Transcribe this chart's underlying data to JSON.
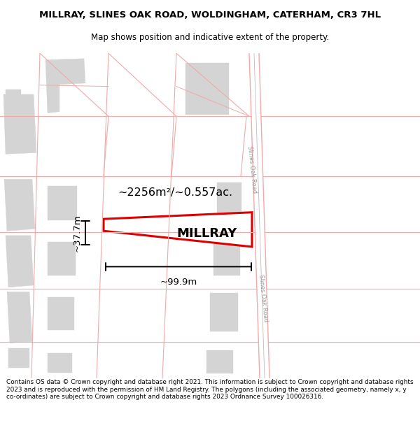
{
  "title": "MILLRAY, SLINES OAK ROAD, WOLDINGHAM, CATERHAM, CR3 7HL",
  "subtitle": "Map shows position and indicative extent of the property.",
  "footer": "Contains OS data © Crown copyright and database right 2021. This information is subject to Crown copyright and database rights 2023 and is reproduced with the permission of HM Land Registry. The polygons (including the associated geometry, namely x, y co-ordinates) are subject to Crown copyright and database rights 2023 Ordnance Survey 100026316.",
  "bg_color": "#ffffff",
  "road_color": "#f0aaaa",
  "building_color": "#d4d4d4",
  "highlight_color": "#dd0000",
  "area_text": "~2256m²/~0.557ac.",
  "property_label": "MILLRAY",
  "dim_width": "~99.9m",
  "dim_height": "~37.7m",
  "road_label": "Slines Oak Road"
}
